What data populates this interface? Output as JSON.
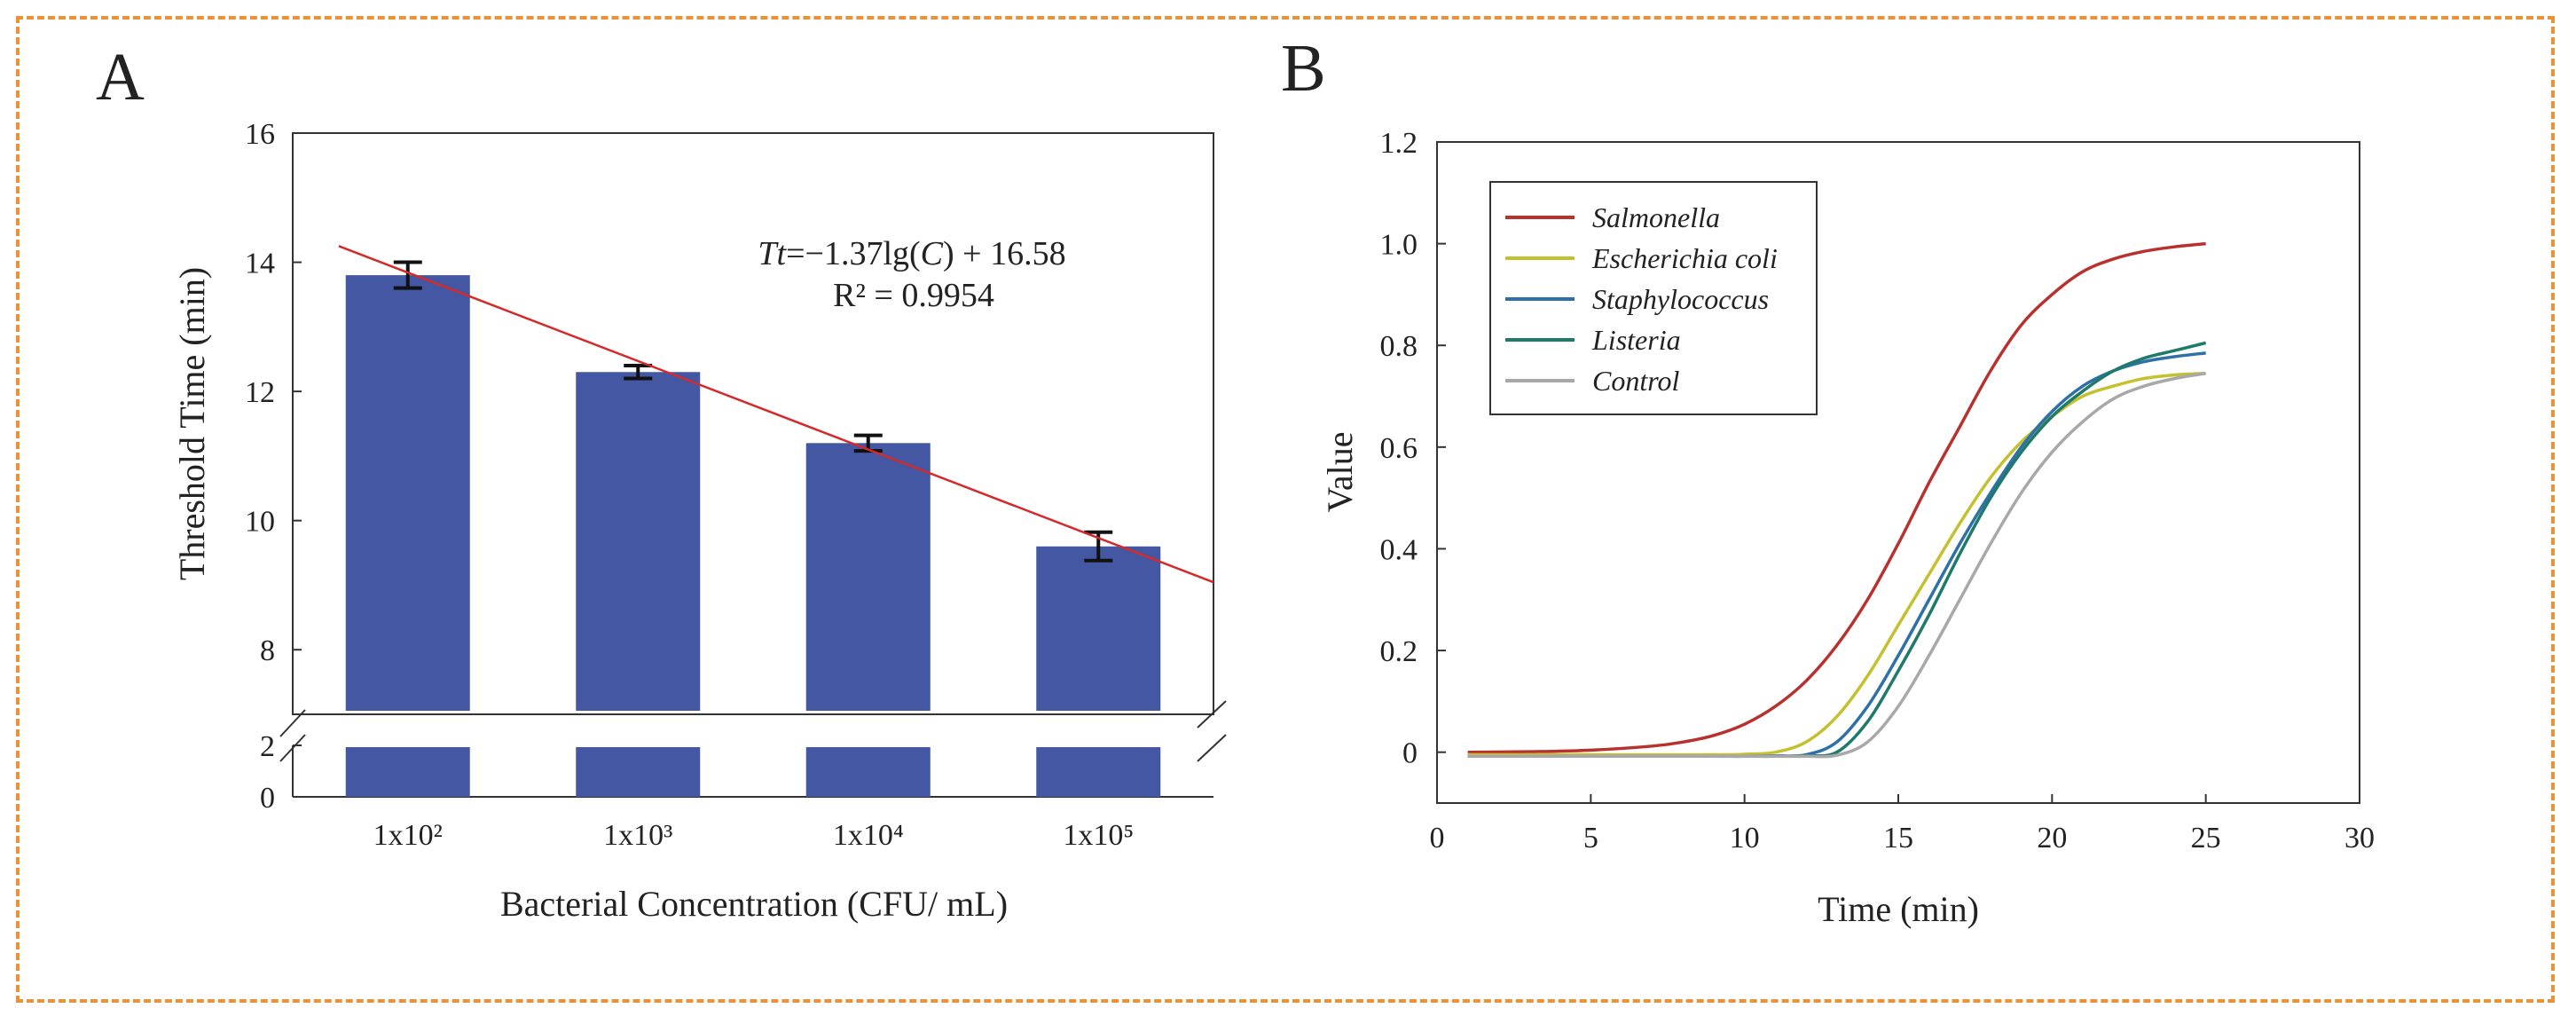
{
  "chart_data": [
    {
      "panel": "A",
      "type": "bar",
      "title": "",
      "xlabel": "Bacterial Concentration (CFU/ mL)",
      "ylabel": "Threshold Time  (min)",
      "categories": [
        "1x10²",
        "1x10³",
        "1x10⁴",
        "1x10⁵"
      ],
      "values": [
        13.8,
        12.3,
        11.2,
        9.6
      ],
      "errors": [
        0.2,
        0.1,
        0.12,
        0.22
      ],
      "y_ticks_upper": [
        8,
        10,
        12,
        14,
        16
      ],
      "y_ticks_lower": [
        0,
        2
      ],
      "ylim_upper": [
        7,
        16
      ],
      "ylim_lower": [
        0,
        2
      ],
      "axis_break": true,
      "bar_color": "#4357A2",
      "fit_line": {
        "slope": -1.37,
        "intercept": 16.58,
        "color": "#D42A2A",
        "x_start_log": 1.7,
        "x_end_log": 5.5
      },
      "annotations": {
        "equation": {
          "italic_prefix": "Tt",
          "mid": "=−1.37lg(",
          "italic_var": "C",
          "suffix": ") + 16.58"
        },
        "r2": "R² = 0.9954"
      }
    },
    {
      "panel": "B",
      "type": "line",
      "title": "",
      "xlabel": "Time (min)",
      "ylabel": "Value",
      "xlim": [
        0,
        30
      ],
      "ylim": [
        -0.1,
        1.2
      ],
      "x_ticks": [
        0,
        5,
        10,
        15,
        20,
        25,
        30
      ],
      "y_ticks": [
        0,
        0.2,
        0.4,
        0.6,
        0.8,
        1.0,
        1.2
      ],
      "y_tick_labels": [
        "0",
        "0.2",
        "0.4",
        "0.6",
        "0.8",
        "1.0",
        "1.2"
      ],
      "legend_position": "top-left",
      "series": [
        {
          "name": "Salmonella",
          "color": "#B8312F",
          "x": [
            1,
            3,
            5,
            7,
            8,
            9,
            10,
            11,
            12,
            13,
            14,
            15,
            16,
            17,
            18,
            19,
            20,
            21,
            22,
            23,
            24,
            25
          ],
          "y": [
            0,
            0.001,
            0.004,
            0.012,
            0.02,
            0.033,
            0.055,
            0.09,
            0.14,
            0.21,
            0.3,
            0.41,
            0.53,
            0.64,
            0.75,
            0.84,
            0.9,
            0.945,
            0.97,
            0.985,
            0.994,
            1.0
          ]
        },
        {
          "name": "Escherichia coli",
          "color": "#C4C030",
          "x": [
            1,
            5,
            9,
            10,
            11,
            12,
            13,
            14,
            15,
            16,
            17,
            18,
            19,
            20,
            21,
            22,
            23,
            24,
            25
          ],
          "y": [
            -0.005,
            -0.005,
            -0.005,
            -0.004,
            0.0,
            0.02,
            0.07,
            0.15,
            0.25,
            0.35,
            0.45,
            0.54,
            0.61,
            0.66,
            0.7,
            0.72,
            0.735,
            0.742,
            0.745
          ]
        },
        {
          "name": "Staphylococcus",
          "color": "#2E70A8",
          "x": [
            1,
            5,
            9,
            10,
            11,
            12,
            13,
            14,
            15,
            16,
            17,
            18,
            19,
            20,
            21,
            22,
            23,
            24,
            25
          ],
          "y": [
            -0.008,
            -0.008,
            -0.008,
            -0.008,
            -0.007,
            -0.005,
            0.02,
            0.09,
            0.19,
            0.3,
            0.41,
            0.51,
            0.6,
            0.67,
            0.72,
            0.75,
            0.768,
            0.778,
            0.785
          ]
        },
        {
          "name": "Listeria",
          "color": "#1E7A6A",
          "x": [
            1,
            5,
            9,
            10,
            11,
            12,
            13,
            14,
            15,
            16,
            17,
            18,
            19,
            20,
            21,
            22,
            23,
            24,
            25
          ],
          "y": [
            -0.008,
            -0.008,
            -0.008,
            -0.008,
            -0.008,
            -0.007,
            0.0,
            0.06,
            0.16,
            0.27,
            0.39,
            0.5,
            0.59,
            0.66,
            0.71,
            0.75,
            0.775,
            0.79,
            0.805
          ]
        },
        {
          "name": "Control",
          "color": "#A8A8A8",
          "x": [
            1,
            5,
            9,
            10,
            11,
            12,
            13,
            14,
            15,
            16,
            17,
            18,
            19,
            20,
            21,
            22,
            23,
            24,
            25
          ],
          "y": [
            -0.008,
            -0.008,
            -0.008,
            -0.008,
            -0.008,
            -0.008,
            -0.006,
            0.02,
            0.09,
            0.19,
            0.3,
            0.41,
            0.51,
            0.59,
            0.65,
            0.695,
            0.72,
            0.735,
            0.745
          ]
        }
      ]
    }
  ]
}
